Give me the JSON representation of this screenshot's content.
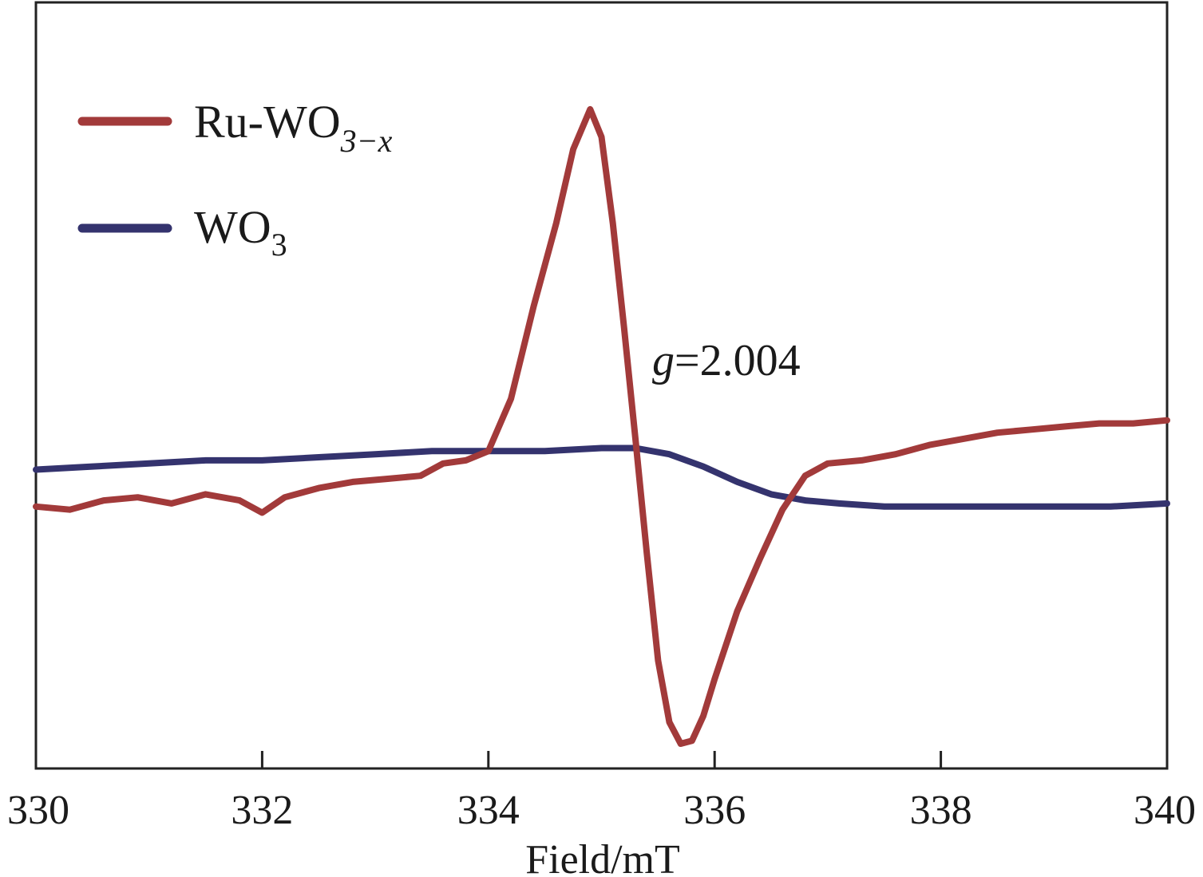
{
  "chart_data": {
    "type": "line",
    "title": "",
    "xlabel": "Field/mT",
    "ylabel": "",
    "xlim": [
      330,
      340
    ],
    "ylim": [
      -1.0,
      1.0
    ],
    "x_ticks": [
      "330",
      "332",
      "334",
      "336",
      "338",
      "340"
    ],
    "y_ticks_shown": false,
    "grid": false,
    "legend_position": "top-left",
    "annotation": {
      "italic_part": "g",
      "text": "=2.004"
    },
    "series": [
      {
        "name": "Ru-WO3−x",
        "label_main": "Ru-WO",
        "label_sub": "3−x",
        "color": "#a23a3a",
        "x": [
          330.0,
          330.3,
          330.6,
          330.9,
          331.2,
          331.5,
          331.8,
          332.0,
          332.2,
          332.5,
          332.8,
          333.1,
          333.4,
          333.6,
          333.8,
          334.0,
          334.2,
          334.4,
          334.6,
          334.75,
          334.9,
          335.0,
          335.1,
          335.2,
          335.3,
          335.4,
          335.5,
          335.6,
          335.7,
          335.8,
          335.9,
          336.0,
          336.2,
          336.4,
          336.6,
          336.8,
          337.0,
          337.3,
          337.6,
          337.9,
          338.2,
          338.5,
          338.8,
          339.1,
          339.4,
          339.7,
          340.0
        ],
        "y": [
          -0.3,
          -0.31,
          -0.28,
          -0.27,
          -0.29,
          -0.26,
          -0.28,
          -0.32,
          -0.27,
          -0.24,
          -0.22,
          -0.21,
          -0.2,
          -0.16,
          -0.15,
          -0.12,
          0.05,
          0.35,
          0.62,
          0.86,
          0.99,
          0.9,
          0.62,
          0.28,
          -0.08,
          -0.45,
          -0.8,
          -1.0,
          -1.07,
          -1.06,
          -0.98,
          -0.86,
          -0.64,
          -0.47,
          -0.31,
          -0.2,
          -0.16,
          -0.15,
          -0.13,
          -0.1,
          -0.08,
          -0.06,
          -0.05,
          -0.04,
          -0.03,
          -0.03,
          -0.02
        ]
      },
      {
        "name": "WO3",
        "label_main": "WO",
        "label_sub": "3",
        "color": "#34336e",
        "x": [
          330.0,
          330.5,
          331.0,
          331.5,
          332.0,
          332.5,
          333.0,
          333.5,
          334.0,
          334.5,
          335.0,
          335.3,
          335.6,
          335.9,
          336.2,
          336.5,
          336.8,
          337.1,
          337.5,
          338.0,
          338.5,
          339.0,
          339.5,
          340.0
        ],
        "y": [
          -0.18,
          -0.17,
          -0.16,
          -0.15,
          -0.15,
          -0.14,
          -0.13,
          -0.12,
          -0.12,
          -0.12,
          -0.11,
          -0.11,
          -0.13,
          -0.17,
          -0.22,
          -0.26,
          -0.28,
          -0.29,
          -0.3,
          -0.3,
          -0.3,
          -0.3,
          -0.3,
          -0.29
        ]
      }
    ]
  }
}
